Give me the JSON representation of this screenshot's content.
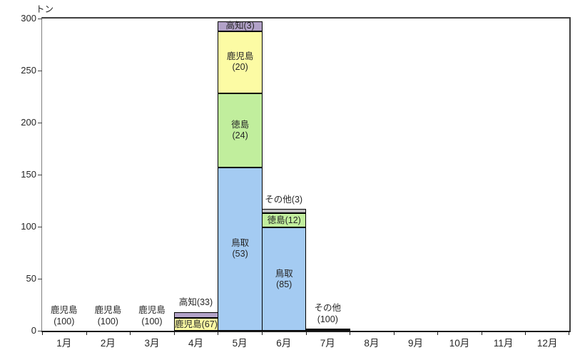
{
  "chart_data": {
    "type": "bar",
    "stacked": true,
    "title": "",
    "ylabel": "トン",
    "xlabel": "",
    "ylim": [
      0,
      300
    ],
    "yticks": [
      0,
      50,
      100,
      150,
      200,
      250,
      300
    ],
    "grid": false,
    "legend": "none",
    "categories": [
      "1月",
      "2月",
      "3月",
      "4月",
      "5月",
      "6月",
      "7月",
      "8月",
      "9月",
      "10月",
      "11月",
      "12月"
    ],
    "colors": {
      "鳥取": "#A4CBF2",
      "徳島": "#C1EE9D",
      "鹿児島": "#FCFBA4",
      "高知": "#B2A2C8",
      "その他": "#BFBFBF",
      "その他_7月": "#1F1F1F"
    },
    "months": [
      {
        "category": "1月",
        "total": 0,
        "segments": [],
        "above_label_lines": [
          "鹿児島",
          "(100)"
        ]
      },
      {
        "category": "2月",
        "total": 0,
        "segments": [],
        "above_label_lines": [
          "鹿児島",
          "(100)"
        ]
      },
      {
        "category": "3月",
        "total": 0,
        "segments": [],
        "above_label_lines": [
          "鹿児島",
          "(100)"
        ]
      },
      {
        "category": "4月",
        "total": 18,
        "segments": [
          {
            "name": "鹿児島",
            "percent": 67,
            "value": 12,
            "color": "#FCFBA4",
            "label_lines": [
              "鹿児島(67)"
            ]
          },
          {
            "name": "高知",
            "percent": 33,
            "value": 6,
            "color": "#B2A2C8",
            "label_lines": []
          }
        ],
        "above_label_lines": [
          "高知(33)"
        ]
      },
      {
        "category": "5月",
        "total": 297,
        "segments": [
          {
            "name": "鳥取",
            "percent": 53,
            "value": 157,
            "color": "#A4CBF2",
            "label_lines": [
              "鳥取",
              "(53)"
            ]
          },
          {
            "name": "徳島",
            "percent": 24,
            "value": 71,
            "color": "#C1EE9D",
            "label_lines": [
              "徳島",
              "(24)"
            ]
          },
          {
            "name": "鹿児島",
            "percent": 20,
            "value": 60,
            "color": "#FCFBA4",
            "label_lines": [
              "鹿児島",
              "(20)"
            ]
          },
          {
            "name": "高知",
            "percent": 3,
            "value": 9,
            "color": "#B2A2C8",
            "label_lines": [
              "高知(3)"
            ]
          }
        ],
        "above_label_lines": []
      },
      {
        "category": "6月",
        "total": 117,
        "segments": [
          {
            "name": "鳥取",
            "percent": 85,
            "value": 99,
            "color": "#A4CBF2",
            "label_lines": [
              "鳥取",
              "(85)"
            ]
          },
          {
            "name": "徳島",
            "percent": 12,
            "value": 14,
            "color": "#C1EE9D",
            "label_lines": [
              "徳島(12)"
            ]
          },
          {
            "name": "その他",
            "percent": 3,
            "value": 4,
            "color": "#BFBFBF",
            "label_lines": []
          }
        ],
        "above_label_lines": [
          "その他(3)"
        ]
      },
      {
        "category": "7月",
        "total": 2,
        "segments": [
          {
            "name": "その他",
            "percent": 100,
            "value": 2,
            "color": "#1F1F1F",
            "label_lines": []
          }
        ],
        "above_label_lines": [
          "その他",
          "(100)"
        ]
      },
      {
        "category": "8月",
        "total": 0,
        "segments": [],
        "above_label_lines": []
      },
      {
        "category": "9月",
        "total": 0,
        "segments": [],
        "above_label_lines": []
      },
      {
        "category": "10月",
        "total": 0,
        "segments": [],
        "above_label_lines": []
      },
      {
        "category": "11月",
        "total": 0,
        "segments": [],
        "above_label_lines": []
      },
      {
        "category": "12月",
        "total": 0,
        "segments": [],
        "above_label_lines": []
      }
    ]
  }
}
